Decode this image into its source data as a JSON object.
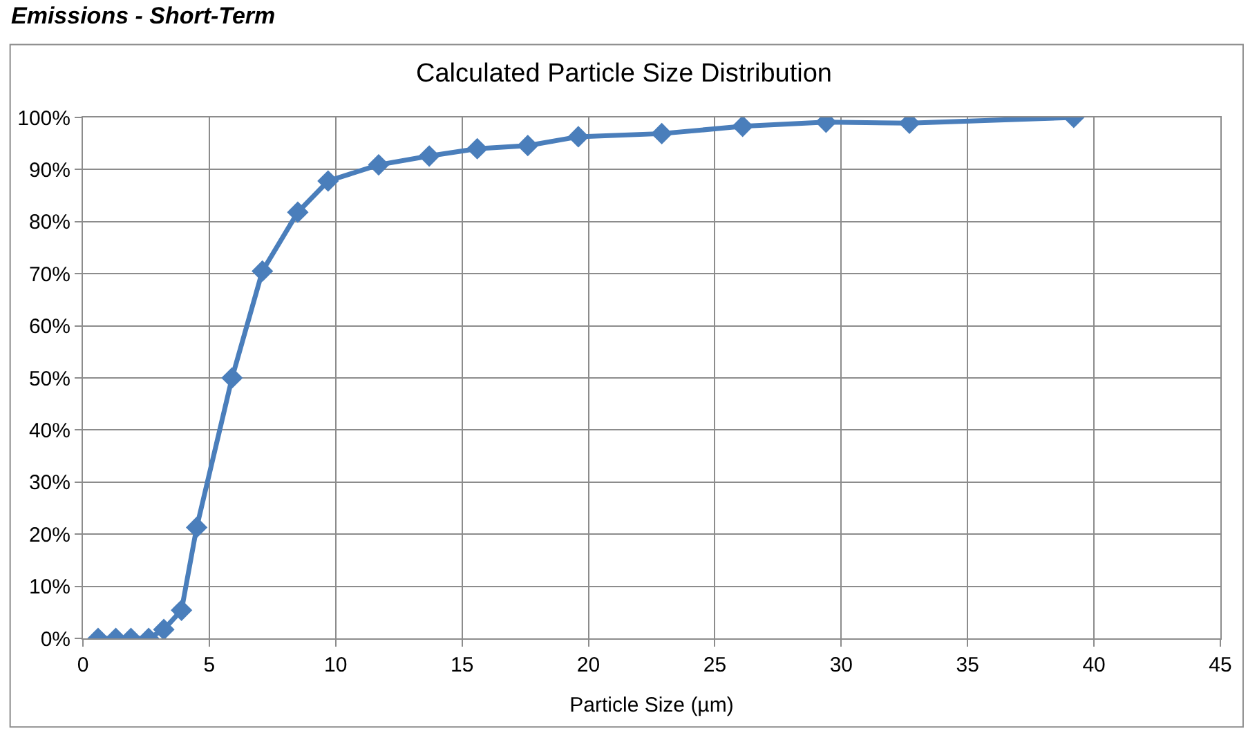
{
  "chart_data": {
    "type": "line",
    "title": "Calculated Particle Size Distribution",
    "xlabel": "Particle Size (µm)",
    "annotations": [
      "Emissions - Short-Term"
    ],
    "x": [
      0.6,
      1.3,
      1.9,
      2.6,
      3.2,
      3.9,
      4.5,
      5.9,
      7.1,
      8.5,
      9.7,
      11.7,
      13.7,
      15.6,
      17.6,
      19.6,
      22.9,
      26.1,
      29.4,
      32.7,
      39.2
    ],
    "series": [
      {
        "color": "#4a7ebb",
        "values": [
          0,
          0,
          0,
          0,
          1.7,
          5.4,
          21.3,
          50.0,
          70.5,
          81.8,
          87.8,
          90.9,
          92.6,
          94.0,
          94.6,
          96.3,
          96.9,
          98.3,
          99.1,
          98.9,
          100
        ]
      }
    ],
    "xlim": [
      0,
      45
    ],
    "xticks": [
      0,
      5,
      10,
      15,
      20,
      25,
      30,
      35,
      40,
      45
    ],
    "ylim": [
      0,
      100
    ],
    "yticks": [
      {
        "value": 0,
        "label": "0%"
      },
      {
        "value": 10,
        "label": "10%"
      },
      {
        "value": 20,
        "label": "20%"
      },
      {
        "value": 30,
        "label": "30%"
      },
      {
        "value": 40,
        "label": "40%"
      },
      {
        "value": 50,
        "label": "50%"
      },
      {
        "value": 60,
        "label": "60%"
      },
      {
        "value": 70,
        "label": "70%"
      },
      {
        "value": 80,
        "label": "80%"
      },
      {
        "value": 90,
        "label": "90%"
      },
      {
        "value": 100,
        "label": "100%"
      }
    ],
    "grid": true,
    "marker": "diamond",
    "line_style": "solid"
  }
}
